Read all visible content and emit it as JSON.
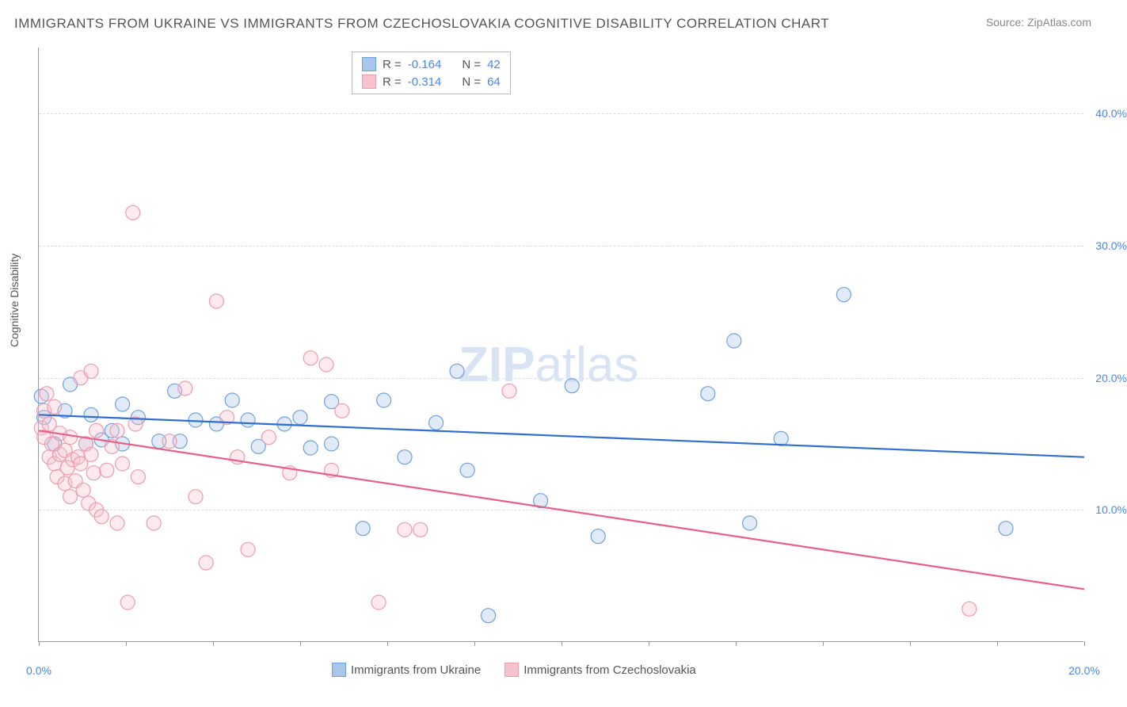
{
  "title": "IMMIGRANTS FROM UKRAINE VS IMMIGRANTS FROM CZECHOSLOVAKIA COGNITIVE DISABILITY CORRELATION CHART",
  "source": "Source: ZipAtlas.com",
  "y_axis_label": "Cognitive Disability",
  "watermark": "ZIPatlas",
  "chart": {
    "type": "scatter",
    "xlim": [
      0,
      20
    ],
    "ylim": [
      0,
      45
    ],
    "x_ticks": [
      0,
      20
    ],
    "x_tick_labels": [
      "0.0%",
      "20.0%"
    ],
    "x_minor_ticks": [
      1.67,
      3.33,
      5,
      6.67,
      8.33,
      10,
      11.67,
      13.33,
      15,
      16.67,
      18.33
    ],
    "y_ticks": [
      10,
      20,
      30,
      40
    ],
    "y_tick_labels": [
      "10.0%",
      "20.0%",
      "30.0%",
      "40.0%"
    ],
    "background_color": "#ffffff",
    "grid_color": "#dddddd",
    "marker_radius": 9,
    "marker_fill_opacity": 0.35,
    "marker_stroke_width": 1.2
  },
  "series": [
    {
      "name": "Immigrants from Ukraine",
      "color_fill": "#a8c6ec",
      "color_stroke": "#6fa0de",
      "line_color": "#2f6fd0",
      "R": "-0.164",
      "N": "42",
      "trend": {
        "x1": 0,
        "y1": 17.2,
        "x2": 20,
        "y2": 14.0
      },
      "points": [
        [
          0.05,
          18.6
        ],
        [
          0.1,
          17.0
        ],
        [
          0.3,
          15.0
        ],
        [
          0.5,
          17.5
        ],
        [
          0.6,
          19.5
        ],
        [
          0.9,
          15.0
        ],
        [
          1.0,
          17.2
        ],
        [
          1.2,
          15.3
        ],
        [
          1.4,
          16.0
        ],
        [
          1.6,
          18.0
        ],
        [
          1.6,
          15.0
        ],
        [
          1.9,
          17.0
        ],
        [
          2.3,
          15.2
        ],
        [
          2.6,
          19.0
        ],
        [
          2.7,
          15.2
        ],
        [
          3.0,
          16.8
        ],
        [
          3.4,
          16.5
        ],
        [
          3.7,
          18.3
        ],
        [
          4.0,
          16.8
        ],
        [
          4.2,
          14.8
        ],
        [
          4.7,
          16.5
        ],
        [
          5.0,
          17.0
        ],
        [
          5.2,
          14.7
        ],
        [
          5.6,
          18.2
        ],
        [
          5.6,
          15.0
        ],
        [
          6.2,
          8.6
        ],
        [
          6.6,
          18.3
        ],
        [
          7.0,
          14.0
        ],
        [
          7.6,
          16.6
        ],
        [
          8.0,
          20.5
        ],
        [
          8.2,
          13.0
        ],
        [
          8.6,
          2.0
        ],
        [
          9.6,
          10.7
        ],
        [
          10.2,
          19.4
        ],
        [
          10.7,
          8.0
        ],
        [
          12.8,
          18.8
        ],
        [
          13.3,
          22.8
        ],
        [
          13.6,
          9.0
        ],
        [
          14.2,
          15.4
        ],
        [
          15.4,
          26.3
        ],
        [
          18.5,
          8.6
        ]
      ]
    },
    {
      "name": "Immigrants from Czechoslovakia",
      "color_fill": "#f5c2ce",
      "color_stroke": "#ec9bb0",
      "line_color": "#e85f8a",
      "R": "-0.314",
      "N": "64",
      "trend": {
        "x1": 0,
        "y1": 16.0,
        "x2": 20,
        "y2": 4.0
      },
      "points": [
        [
          0.05,
          16.2
        ],
        [
          0.1,
          15.5
        ],
        [
          0.1,
          17.5
        ],
        [
          0.15,
          18.8
        ],
        [
          0.2,
          14.0
        ],
        [
          0.2,
          16.5
        ],
        [
          0.25,
          15.0
        ],
        [
          0.3,
          13.5
        ],
        [
          0.3,
          17.8
        ],
        [
          0.35,
          12.5
        ],
        [
          0.4,
          14.2
        ],
        [
          0.4,
          15.8
        ],
        [
          0.5,
          12.0
        ],
        [
          0.5,
          14.5
        ],
        [
          0.55,
          13.2
        ],
        [
          0.6,
          11.0
        ],
        [
          0.6,
          15.5
        ],
        [
          0.65,
          13.8
        ],
        [
          0.7,
          12.2
        ],
        [
          0.75,
          14.0
        ],
        [
          0.8,
          20.0
        ],
        [
          0.8,
          13.5
        ],
        [
          0.85,
          11.5
        ],
        [
          0.9,
          15.0
        ],
        [
          0.95,
          10.5
        ],
        [
          1.0,
          20.5
        ],
        [
          1.0,
          14.2
        ],
        [
          1.05,
          12.8
        ],
        [
          1.1,
          10.0
        ],
        [
          1.1,
          16.0
        ],
        [
          1.2,
          9.5
        ],
        [
          1.3,
          13.0
        ],
        [
          1.4,
          14.8
        ],
        [
          1.5,
          9.0
        ],
        [
          1.5,
          16.0
        ],
        [
          1.6,
          13.5
        ],
        [
          1.7,
          3.0
        ],
        [
          1.8,
          32.5
        ],
        [
          1.85,
          16.5
        ],
        [
          1.9,
          12.5
        ],
        [
          2.2,
          9.0
        ],
        [
          2.5,
          15.2
        ],
        [
          2.8,
          19.2
        ],
        [
          3.0,
          11.0
        ],
        [
          3.2,
          6.0
        ],
        [
          3.4,
          25.8
        ],
        [
          3.6,
          17.0
        ],
        [
          3.8,
          14.0
        ],
        [
          4.0,
          7.0
        ],
        [
          4.4,
          15.5
        ],
        [
          4.8,
          12.8
        ],
        [
          5.2,
          21.5
        ],
        [
          5.5,
          21.0
        ],
        [
          5.6,
          13.0
        ],
        [
          5.8,
          17.5
        ],
        [
          6.5,
          3.0
        ],
        [
          7.0,
          8.5
        ],
        [
          7.3,
          8.5
        ],
        [
          9.0,
          19.0
        ],
        [
          17.8,
          2.5
        ]
      ]
    }
  ],
  "legend_top": {
    "rows": [
      {
        "swatch_fill": "#a8c6ec",
        "swatch_stroke": "#6fa0de",
        "r_label": "R =",
        "r_val": "-0.164",
        "n_label": "N =",
        "n_val": "42"
      },
      {
        "swatch_fill": "#f5c2ce",
        "swatch_stroke": "#ec9bb0",
        "r_label": "R =",
        "r_val": "-0.314",
        "n_label": "N =",
        "n_val": "64"
      }
    ]
  },
  "legend_bottom": [
    {
      "swatch_fill": "#a8c6ec",
      "swatch_stroke": "#6fa0de",
      "label": "Immigrants from Ukraine"
    },
    {
      "swatch_fill": "#f5c2ce",
      "swatch_stroke": "#ec9bb0",
      "label": "Immigrants from Czechoslovakia"
    }
  ]
}
